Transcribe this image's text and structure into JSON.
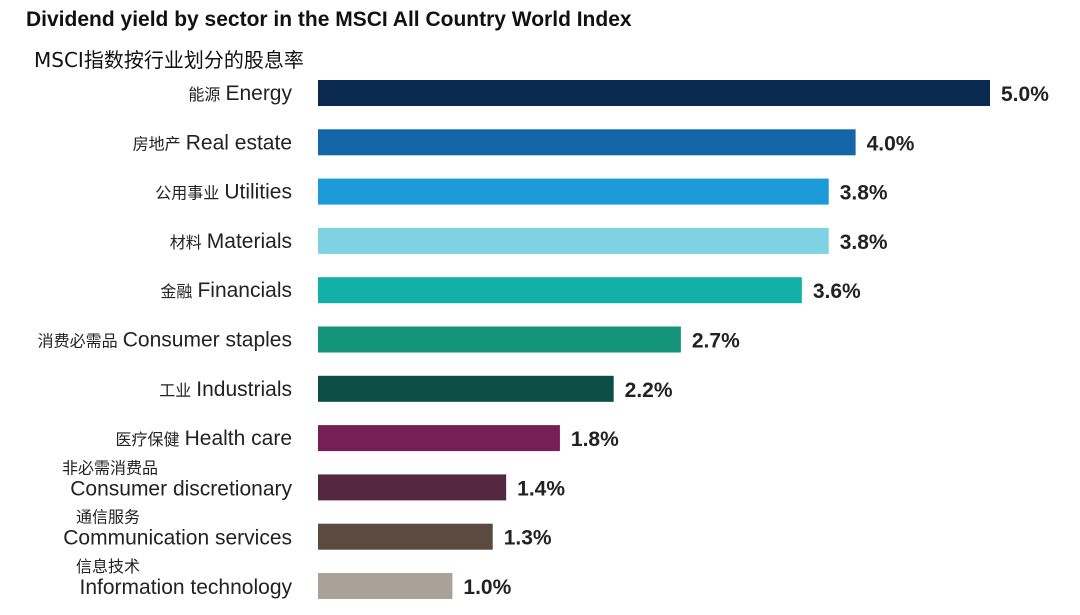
{
  "chart_data": {
    "type": "bar",
    "orientation": "horizontal",
    "title": "Dividend yield by sector in the MSCI All Country World Index",
    "subtitle": "MSCI指数按行业划分的股息率",
    "xlabel": "",
    "ylabel": "",
    "xlim": [
      0,
      5.0
    ],
    "grid": false,
    "legend": "none",
    "categories": [
      {
        "cn": "能源",
        "en": "Energy",
        "layout": "inline"
      },
      {
        "cn": "房地产",
        "en": "Real estate",
        "layout": "inline"
      },
      {
        "cn": "公用事业",
        "en": "Utilities",
        "layout": "inline"
      },
      {
        "cn": "材料",
        "en": "Materials",
        "layout": "inline"
      },
      {
        "cn": "金融",
        "en": "Financials",
        "layout": "inline"
      },
      {
        "cn": "消费必需品",
        "en": "Consumer staples",
        "layout": "inline"
      },
      {
        "cn": "工业",
        "en": "Industrials",
        "layout": "inline"
      },
      {
        "cn": "医疗保健",
        "en": "Health care",
        "layout": "inline"
      },
      {
        "cn": "非必需消费品",
        "en": "Consumer discretionary",
        "layout": "stacked"
      },
      {
        "cn": "通信服务",
        "en": "Communication services",
        "layout": "stacked"
      },
      {
        "cn": "信息技术",
        "en": "Information technology",
        "layout": "stacked"
      }
    ],
    "values": [
      5.0,
      4.0,
      3.8,
      3.8,
      3.6,
      2.7,
      2.2,
      1.8,
      1.4,
      1.3,
      1.0
    ],
    "value_labels": [
      "5.0%",
      "4.0%",
      "3.8%",
      "3.8%",
      "3.6%",
      "2.7%",
      "2.2%",
      "1.8%",
      "1.4%",
      "1.3%",
      "1.0%"
    ],
    "colors": [
      "#0b2a50",
      "#1566a8",
      "#1b9ad8",
      "#7fd1e4",
      "#12b0a8",
      "#149478",
      "#0b4e46",
      "#761f56",
      "#56283f",
      "#5b4a40",
      "#aaa198"
    ]
  }
}
